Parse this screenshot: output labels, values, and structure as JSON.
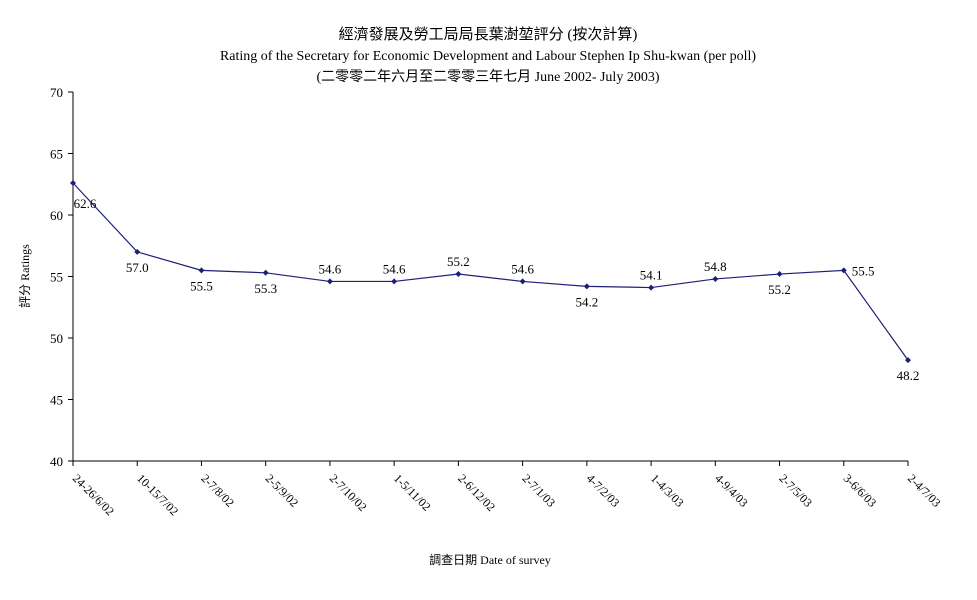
{
  "chart_data": {
    "type": "line",
    "title": "經濟發展及勞工局局長葉澍堃評分 (按次計算)",
    "subtitle": "Rating of the Secretary for Economic Development and Labour Stephen Ip Shu-kwan  (per poll)",
    "subtitle2": "(二零零二年六月至二零零三年七月 June 2002- July 2003)",
    "xlabel": "調查日期 Date of survey",
    "ylabel": "評分 Ratings",
    "ylim": [
      40,
      70
    ],
    "yticks": [
      40,
      45,
      50,
      55,
      60,
      65,
      70
    ],
    "grid": false,
    "categories": [
      "24-26/6/02",
      "10-15/7/02",
      "2-7/8/02",
      "2-5/9/02",
      "2-7/10/02",
      "1-5/11/02",
      "2-6/12/02",
      "2-7/1/03",
      "4-7/2/03",
      "1-4/3/03",
      "4-9/4/03",
      "2-7/5/03",
      "3-6/6/03",
      "2-4/7/03"
    ],
    "values": [
      62.6,
      57.0,
      55.5,
      55.3,
      54.6,
      54.6,
      55.2,
      54.6,
      54.2,
      54.1,
      54.8,
      55.2,
      55.5,
      48.2
    ],
    "data_labels": [
      "62.6",
      "57.0",
      "55.5",
      "55.3",
      "54.6",
      "54.6",
      "55.2",
      "54.6",
      "54.2",
      "54.1",
      "54.8",
      "55.2",
      "55.5",
      "48.2"
    ],
    "line_color": "#1f1f7a",
    "marker_color": "#1f1f7a"
  }
}
